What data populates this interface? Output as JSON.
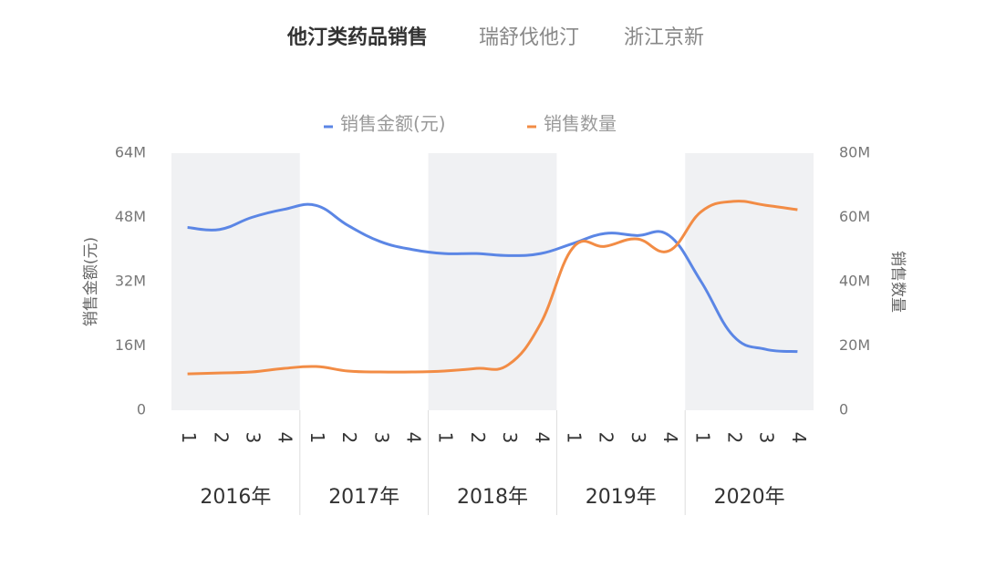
{
  "chart_data": {
    "type": "line",
    "title": "他汀类药品销售",
    "subtitle": [
      "瑞舒伐他汀",
      "浙江京新"
    ],
    "y_label": "销售金额(元)",
    "y2_label": "销售数量",
    "categories": [
      "1",
      "2",
      "3",
      "4",
      "1",
      "2",
      "3",
      "4",
      "1",
      "2",
      "3",
      "4",
      "1",
      "2",
      "3",
      "4",
      "1",
      "2",
      "3",
      "4"
    ],
    "groups": [
      "2016年",
      "2017年",
      "2018年",
      "2019年",
      "2020年"
    ],
    "series": [
      {
        "name": "销售金额(元)",
        "color": "#5b86e5",
        "axis": "y",
        "values": [
          45500000,
          45000000,
          48000000,
          50000000,
          51000000,
          46000000,
          42000000,
          40000000,
          39000000,
          39000000,
          38500000,
          39000000,
          41500000,
          44000000,
          43500000,
          43500000,
          32000000,
          18500000,
          15200000,
          14600000
        ]
      },
      {
        "name": "销售数量",
        "color": "#f28c45",
        "axis": "y2",
        "values": [
          11300000,
          11600000,
          11900000,
          13000000,
          13600000,
          12200000,
          11900000,
          11900000,
          12200000,
          13000000,
          14200000,
          27000000,
          50500000,
          51000000,
          53300000,
          49600000,
          61800000,
          65000000,
          63800000,
          62400000
        ]
      }
    ],
    "ylim": [
      0,
      64000000
    ],
    "yticks": [
      0,
      {
        "value": 16000000,
        "label": "16M"
      },
      {
        "value": 32000000,
        "label": "32M"
      },
      {
        "value": 48000000,
        "label": "48M"
      },
      {
        "value": 64000000,
        "label": "64M"
      }
    ],
    "y2lim": [
      0,
      80000000
    ],
    "y2ticks": [
      0,
      {
        "value": 20000000,
        "label": "20M"
      },
      {
        "value": 40000000,
        "label": "40M"
      },
      {
        "value": 60000000,
        "label": "60M"
      },
      {
        "value": 80000000,
        "label": "80M"
      }
    ],
    "shaded_groups": true
  }
}
